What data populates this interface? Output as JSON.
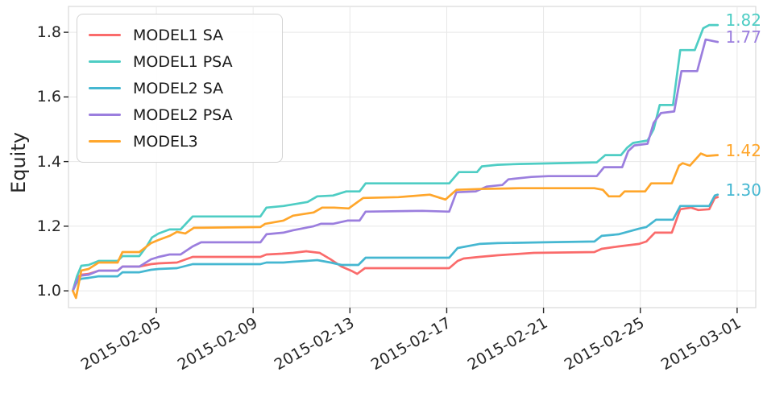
{
  "chart_data": {
    "type": "line",
    "title": "",
    "xlabel": "",
    "ylabel": "Equity",
    "grid": true,
    "legend_position": "upper-left",
    "x_unit": "date (day of Feb 2015; 29 = 2015-03-01)",
    "x_tick_days": [
      5,
      9,
      13,
      17,
      21,
      25,
      29
    ],
    "x_tick_labels": [
      "2015-02-05",
      "2015-02-09",
      "2015-02-13",
      "2015-02-17",
      "2015-02-21",
      "2015-02-25",
      "2015-03-01"
    ],
    "y_ticks": [
      1.0,
      1.2,
      1.4,
      1.6,
      1.8
    ],
    "y_tick_labels": [
      "1.0",
      "1.2",
      "1.4",
      "1.6",
      "1.8"
    ],
    "xlim_days": [
      1.37,
      29.77
    ],
    "ylim": [
      0.948,
      1.88
    ],
    "colors": {
      "grid": "#e7e7e7",
      "spine": "#d9d9d9",
      "tick": "#262626",
      "text": "#262626"
    },
    "series": [
      {
        "name": "MODEL1 SA",
        "color": "#fa6b6b",
        "end_label": "",
        "points": [
          [
            1.55,
            1.0
          ],
          [
            1.72,
            1.042
          ],
          [
            1.9,
            1.05
          ],
          [
            2.2,
            1.0525
          ],
          [
            2.62,
            1.0625
          ],
          [
            3.4,
            1.0625
          ],
          [
            3.6,
            1.075
          ],
          [
            4.3,
            1.075
          ],
          [
            4.78,
            1.0825
          ],
          [
            5.1,
            1.085
          ],
          [
            5.85,
            1.0875
          ],
          [
            6.5,
            1.105
          ],
          [
            9.3,
            1.105
          ],
          [
            9.55,
            1.1125
          ],
          [
            10.2,
            1.115
          ],
          [
            10.65,
            1.1175
          ],
          [
            11.2,
            1.1225
          ],
          [
            11.75,
            1.1175
          ],
          [
            12.2,
            1.0975
          ],
          [
            12.65,
            1.075
          ],
          [
            13.05,
            1.0625
          ],
          [
            13.3,
            1.0525
          ],
          [
            13.62,
            1.07
          ],
          [
            17.1,
            1.07
          ],
          [
            17.45,
            1.0925
          ],
          [
            17.7,
            1.1
          ],
          [
            18.35,
            1.105
          ],
          [
            19.1,
            1.11
          ],
          [
            20.6,
            1.1175
          ],
          [
            23.1,
            1.12
          ],
          [
            23.4,
            1.13
          ],
          [
            24.1,
            1.1375
          ],
          [
            24.95,
            1.145
          ],
          [
            25.25,
            1.1525
          ],
          [
            25.6,
            1.18
          ],
          [
            26.3,
            1.18
          ],
          [
            26.65,
            1.2525
          ],
          [
            27.1,
            1.2575
          ],
          [
            27.4,
            1.25
          ],
          [
            27.85,
            1.2525
          ],
          [
            28.08,
            1.2875
          ],
          [
            28.2,
            1.29
          ]
        ]
      },
      {
        "name": "MODEL1 PSA",
        "color": "#4ecdc4",
        "end_label": "1.82",
        "points": [
          [
            1.55,
            1.0
          ],
          [
            1.72,
            1.045
          ],
          [
            1.9,
            1.0775
          ],
          [
            2.2,
            1.08
          ],
          [
            2.62,
            1.0925
          ],
          [
            3.4,
            1.0925
          ],
          [
            3.6,
            1.1075
          ],
          [
            4.3,
            1.1075
          ],
          [
            4.62,
            1.14
          ],
          [
            4.82,
            1.165
          ],
          [
            5.1,
            1.1775
          ],
          [
            5.55,
            1.19
          ],
          [
            6.0,
            1.19
          ],
          [
            6.5,
            1.23
          ],
          [
            9.3,
            1.23
          ],
          [
            9.55,
            1.2575
          ],
          [
            10.25,
            1.2625
          ],
          [
            10.65,
            1.2675
          ],
          [
            11.25,
            1.275
          ],
          [
            11.65,
            1.2925
          ],
          [
            12.3,
            1.295
          ],
          [
            12.85,
            1.3075
          ],
          [
            13.4,
            1.3075
          ],
          [
            13.65,
            1.3325
          ],
          [
            17.1,
            1.3325
          ],
          [
            17.5,
            1.3675
          ],
          [
            18.25,
            1.3675
          ],
          [
            18.45,
            1.385
          ],
          [
            19.1,
            1.39
          ],
          [
            20.0,
            1.3925
          ],
          [
            23.2,
            1.3975
          ],
          [
            23.55,
            1.42
          ],
          [
            24.2,
            1.42
          ],
          [
            24.45,
            1.4425
          ],
          [
            24.7,
            1.4575
          ],
          [
            25.3,
            1.465
          ],
          [
            25.55,
            1.5
          ],
          [
            25.8,
            1.575
          ],
          [
            26.35,
            1.575
          ],
          [
            26.65,
            1.745
          ],
          [
            27.25,
            1.745
          ],
          [
            27.6,
            1.8125
          ],
          [
            27.85,
            1.8225
          ],
          [
            28.2,
            1.8225
          ]
        ]
      },
      {
        "name": "MODEL2 SA",
        "color": "#45b7d1",
        "end_label": "1.30",
        "points": [
          [
            1.55,
            1.0
          ],
          [
            1.72,
            1.027
          ],
          [
            1.9,
            1.0375
          ],
          [
            2.2,
            1.04
          ],
          [
            2.62,
            1.045
          ],
          [
            3.4,
            1.045
          ],
          [
            3.6,
            1.0575
          ],
          [
            4.3,
            1.0575
          ],
          [
            4.78,
            1.065
          ],
          [
            5.1,
            1.0675
          ],
          [
            5.85,
            1.07
          ],
          [
            6.5,
            1.0825
          ],
          [
            9.3,
            1.0825
          ],
          [
            9.55,
            1.0875
          ],
          [
            10.25,
            1.0875
          ],
          [
            10.65,
            1.09
          ],
          [
            11.2,
            1.0925
          ],
          [
            11.65,
            1.095
          ],
          [
            12.2,
            1.0875
          ],
          [
            12.65,
            1.08
          ],
          [
            13.35,
            1.08
          ],
          [
            13.65,
            1.1025
          ],
          [
            17.1,
            1.1025
          ],
          [
            17.45,
            1.1325
          ],
          [
            18.35,
            1.145
          ],
          [
            19.1,
            1.1475
          ],
          [
            21.0,
            1.15
          ],
          [
            23.1,
            1.1525
          ],
          [
            23.4,
            1.17
          ],
          [
            24.1,
            1.175
          ],
          [
            24.95,
            1.1925
          ],
          [
            25.25,
            1.1975
          ],
          [
            25.65,
            1.22
          ],
          [
            26.35,
            1.22
          ],
          [
            26.65,
            1.2625
          ],
          [
            27.85,
            1.2625
          ],
          [
            28.08,
            1.295
          ],
          [
            28.2,
            1.2975
          ]
        ]
      },
      {
        "name": "MODEL2 PSA",
        "color": "#9b7ede",
        "end_label": "1.77",
        "points": [
          [
            1.55,
            1.0
          ],
          [
            1.72,
            1.032
          ],
          [
            1.9,
            1.0475
          ],
          [
            2.2,
            1.05
          ],
          [
            2.62,
            1.0625
          ],
          [
            3.4,
            1.0625
          ],
          [
            3.6,
            1.075
          ],
          [
            4.3,
            1.075
          ],
          [
            4.78,
            1.0975
          ],
          [
            5.1,
            1.105
          ],
          [
            5.55,
            1.1125
          ],
          [
            6.0,
            1.1125
          ],
          [
            6.5,
            1.1375
          ],
          [
            6.85,
            1.15
          ],
          [
            9.3,
            1.15
          ],
          [
            9.55,
            1.175
          ],
          [
            10.25,
            1.18
          ],
          [
            10.65,
            1.1875
          ],
          [
            11.5,
            1.2
          ],
          [
            11.8,
            1.2075
          ],
          [
            12.3,
            1.2075
          ],
          [
            12.9,
            1.2175
          ],
          [
            13.4,
            1.2175
          ],
          [
            13.65,
            1.245
          ],
          [
            16.0,
            1.2475
          ],
          [
            17.1,
            1.245
          ],
          [
            17.4,
            1.305
          ],
          [
            18.2,
            1.3075
          ],
          [
            18.65,
            1.3225
          ],
          [
            19.3,
            1.3275
          ],
          [
            19.55,
            1.345
          ],
          [
            20.5,
            1.3525
          ],
          [
            21.2,
            1.355
          ],
          [
            23.2,
            1.355
          ],
          [
            23.5,
            1.3825
          ],
          [
            24.25,
            1.3825
          ],
          [
            24.5,
            1.4325
          ],
          [
            24.75,
            1.45
          ],
          [
            25.3,
            1.455
          ],
          [
            25.55,
            1.52
          ],
          [
            25.85,
            1.55
          ],
          [
            26.4,
            1.555
          ],
          [
            26.7,
            1.68
          ],
          [
            27.35,
            1.68
          ],
          [
            27.7,
            1.7775
          ],
          [
            28.2,
            1.77
          ]
        ]
      },
      {
        "name": "MODEL3",
        "color": "#ffa62b",
        "end_label": "1.42",
        "points": [
          [
            1.55,
            1.0
          ],
          [
            1.68,
            0.978
          ],
          [
            1.9,
            1.063
          ],
          [
            2.2,
            1.0675
          ],
          [
            2.62,
            1.0875
          ],
          [
            3.4,
            1.0875
          ],
          [
            3.6,
            1.12
          ],
          [
            4.3,
            1.12
          ],
          [
            4.78,
            1.1475
          ],
          [
            5.1,
            1.1575
          ],
          [
            5.55,
            1.17
          ],
          [
            5.85,
            1.1825
          ],
          [
            6.2,
            1.1775
          ],
          [
            6.55,
            1.195
          ],
          [
            9.3,
            1.1975
          ],
          [
            9.5,
            1.2075
          ],
          [
            10.25,
            1.2175
          ],
          [
            10.65,
            1.2325
          ],
          [
            11.5,
            1.2425
          ],
          [
            11.85,
            1.2575
          ],
          [
            12.35,
            1.2575
          ],
          [
            12.95,
            1.255
          ],
          [
            13.55,
            1.2875
          ],
          [
            15.0,
            1.29
          ],
          [
            16.3,
            1.2975
          ],
          [
            16.95,
            1.2825
          ],
          [
            17.4,
            1.3125
          ],
          [
            18.35,
            1.315
          ],
          [
            20.0,
            1.3175
          ],
          [
            23.1,
            1.3175
          ],
          [
            23.45,
            1.3125
          ],
          [
            23.7,
            1.2925
          ],
          [
            24.15,
            1.2925
          ],
          [
            24.35,
            1.3075
          ],
          [
            25.2,
            1.3075
          ],
          [
            25.45,
            1.3325
          ],
          [
            26.3,
            1.3325
          ],
          [
            26.6,
            1.3875
          ],
          [
            26.75,
            1.395
          ],
          [
            27.05,
            1.3875
          ],
          [
            27.5,
            1.425
          ],
          [
            27.75,
            1.4175
          ],
          [
            28.2,
            1.42
          ]
        ]
      }
    ],
    "end_labels": [
      {
        "text": "1.82",
        "color": "#4ecdc4",
        "value": 1.8225
      },
      {
        "text": "1.77",
        "color": "#9b7ede",
        "value": 1.77
      },
      {
        "text": "1.42",
        "color": "#ffa62b",
        "value": 1.42
      },
      {
        "text": "1.30",
        "color": "#45b7d1",
        "value": 1.2975
      }
    ]
  }
}
